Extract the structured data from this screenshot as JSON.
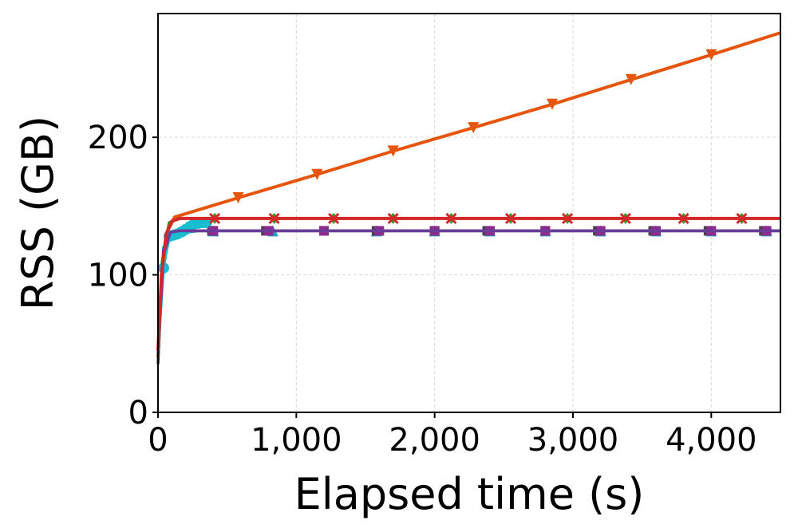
{
  "chart_data": {
    "type": "line",
    "title": "",
    "xlabel": "Elapsed time (s)",
    "ylabel": "RSS (GB)",
    "xlim": [
      0,
      4500
    ],
    "ylim": [
      0,
      290
    ],
    "x_ticks": [
      0,
      1000,
      2000,
      3000,
      4000
    ],
    "x_tick_labels": [
      "0",
      "1,000",
      "2,000",
      "3,000",
      "4,000"
    ],
    "y_ticks": [
      0,
      100,
      200
    ],
    "y_tick_labels": [
      "0",
      "100",
      "200"
    ],
    "grid": true,
    "legend": "none",
    "series": [
      {
        "color": "#e6550d",
        "marker": "triangle-down",
        "points": [
          [
            0,
            40
          ],
          [
            30,
            100
          ],
          [
            60,
            130
          ],
          [
            120,
            142
          ],
          [
            580,
            156
          ],
          [
            1150,
            173
          ],
          [
            1700,
            190
          ],
          [
            2280,
            207
          ],
          [
            2850,
            224
          ],
          [
            3420,
            242
          ],
          [
            4000,
            260
          ],
          [
            4500,
            276
          ]
        ],
        "marker_x": [
          580,
          1150,
          1700,
          2280,
          2850,
          3420,
          4000
        ]
      },
      {
        "color": "#2ca02c",
        "marker": "diamond",
        "points": [
          [
            0,
            45
          ],
          [
            30,
            110
          ],
          [
            80,
            138
          ],
          [
            150,
            141
          ],
          [
            4500,
            141
          ]
        ],
        "marker_x": [
          410,
          840,
          1270,
          1700,
          2120,
          2550,
          2960,
          3380,
          3800,
          4220
        ]
      },
      {
        "color": "#1f9ec9",
        "marker": "triangle-up",
        "points": [
          [
            0,
            42
          ],
          [
            40,
            120
          ],
          [
            100,
            130
          ],
          [
            300,
            132
          ],
          [
            4500,
            132
          ]
        ],
        "marker_x": [
          400,
          830,
          1580,
          2000,
          2400,
          2800,
          3200,
          3600,
          4000,
          4400
        ]
      },
      {
        "color": "#444444",
        "marker": "square",
        "points": [
          [
            0,
            35
          ],
          [
            30,
            105
          ],
          [
            90,
            130
          ],
          [
            250,
            132
          ],
          [
            4500,
            132
          ]
        ],
        "marker_x": [
          390,
          780,
          1200,
          1580,
          2000,
          2380,
          2800,
          3180,
          3580,
          3980,
          4380
        ]
      },
      {
        "color": "#17becf",
        "marker": "circle",
        "points": [
          [
            0,
            45
          ],
          [
            40,
            105
          ],
          [
            80,
            128
          ],
          [
            150,
            130
          ],
          [
            200,
            133
          ],
          [
            260,
            137
          ],
          [
            320,
            138
          ],
          [
            380,
            138
          ]
        ],
        "marker_x": [
          40,
          80,
          110,
          140,
          170,
          200,
          230,
          260,
          290,
          320,
          350
        ]
      },
      {
        "color": "#8e2c8e",
        "marker": "square",
        "points": [
          [
            0,
            45
          ],
          [
            40,
            115
          ],
          [
            90,
            131
          ],
          [
            150,
            132
          ],
          [
            4500,
            132
          ]
        ],
        "marker_x": [
          400,
          800,
          1200,
          1600,
          2000,
          2400,
          2800,
          3200,
          3600,
          4000,
          4400
        ]
      },
      {
        "color": "#6a3d9a",
        "marker": "none",
        "points": [
          [
            0,
            45
          ],
          [
            40,
            118
          ],
          [
            90,
            131
          ],
          [
            160,
            132
          ],
          [
            4500,
            132
          ]
        ],
        "marker_x": []
      },
      {
        "color": "#d62728",
        "marker": "x",
        "points": [
          [
            0,
            45
          ],
          [
            25,
            100
          ],
          [
            60,
            130
          ],
          [
            100,
            139
          ],
          [
            160,
            141
          ],
          [
            4500,
            141
          ]
        ],
        "marker_x": [
          410,
          840,
          1270,
          1700,
          2120,
          2550,
          2960,
          3380,
          3800,
          4220
        ]
      }
    ]
  }
}
